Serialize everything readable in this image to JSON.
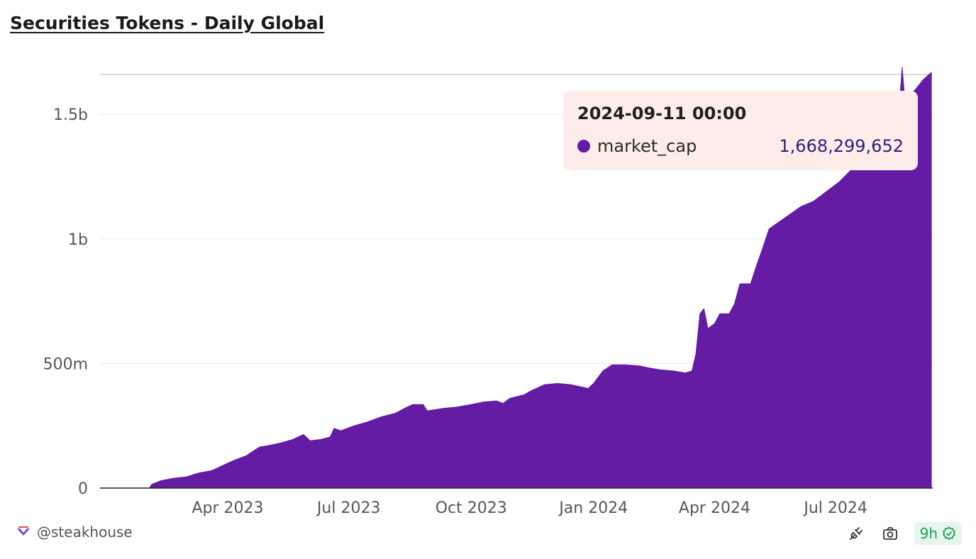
{
  "header": {
    "title": "Securities Tokens - Daily Global"
  },
  "tooltip": {
    "date": "2024-09-11 00:00",
    "series_name": "market_cap",
    "value": "1,668,299,652"
  },
  "footer": {
    "author": "@steakhouse",
    "age": "9h"
  },
  "colors": {
    "series": "#631ca3",
    "grid": "#e8e8e8",
    "axis": "#222222",
    "badge": "#1e9e55"
  },
  "icons": [
    "steakhouse-logo-icon",
    "plug-icon",
    "camera-icon",
    "check-circle-icon"
  ],
  "chart_data": {
    "type": "area",
    "title": "Securities Tokens - Daily Global",
    "xlabel": "",
    "ylabel": "",
    "series": [
      {
        "name": "market_cap"
      }
    ],
    "y_ticks": [
      {
        "value": 0,
        "label": "0"
      },
      {
        "value": 500000000,
        "label": "500m"
      },
      {
        "value": 1000000000,
        "label": "1b"
      },
      {
        "value": 1500000000,
        "label": "1.5b"
      }
    ],
    "x_ticks": [
      {
        "date": "2023-04-01",
        "label": "Apr 2023"
      },
      {
        "date": "2023-07-01",
        "label": "Jul 2023"
      },
      {
        "date": "2023-10-01",
        "label": "Oct 2023"
      },
      {
        "date": "2024-01-01",
        "label": "Jan 2024"
      },
      {
        "date": "2024-04-01",
        "label": "Apr 2024"
      },
      {
        "date": "2024-07-01",
        "label": "Jul 2024"
      }
    ],
    "xlim": [
      "2022-12-26",
      "2024-09-12"
    ],
    "ylim": [
      0,
      1660000000
    ],
    "grid": true,
    "points": [
      [
        "2022-12-26",
        0
      ],
      [
        "2023-02-01",
        0
      ],
      [
        "2023-02-03",
        15000000
      ],
      [
        "2023-02-10",
        30000000
      ],
      [
        "2023-02-20",
        40000000
      ],
      [
        "2023-03-01",
        45000000
      ],
      [
        "2023-03-10",
        60000000
      ],
      [
        "2023-03-20",
        70000000
      ],
      [
        "2023-03-28",
        90000000
      ],
      [
        "2023-04-01",
        100000000
      ],
      [
        "2023-04-05",
        110000000
      ],
      [
        "2023-04-15",
        130000000
      ],
      [
        "2023-04-25",
        165000000
      ],
      [
        "2023-05-01",
        170000000
      ],
      [
        "2023-05-10",
        180000000
      ],
      [
        "2023-05-20",
        195000000
      ],
      [
        "2023-05-28",
        215000000
      ],
      [
        "2023-06-02",
        190000000
      ],
      [
        "2023-06-10",
        195000000
      ],
      [
        "2023-06-17",
        205000000
      ],
      [
        "2023-06-20",
        240000000
      ],
      [
        "2023-06-25",
        230000000
      ],
      [
        "2023-07-05",
        250000000
      ],
      [
        "2023-07-15",
        265000000
      ],
      [
        "2023-07-25",
        285000000
      ],
      [
        "2023-08-05",
        300000000
      ],
      [
        "2023-08-12",
        320000000
      ],
      [
        "2023-08-18",
        335000000
      ],
      [
        "2023-08-26",
        335000000
      ],
      [
        "2023-08-29",
        310000000
      ],
      [
        "2023-09-10",
        320000000
      ],
      [
        "2023-09-20",
        325000000
      ],
      [
        "2023-10-01",
        335000000
      ],
      [
        "2023-10-10",
        345000000
      ],
      [
        "2023-10-20",
        350000000
      ],
      [
        "2023-10-25",
        340000000
      ],
      [
        "2023-10-30",
        360000000
      ],
      [
        "2023-11-10",
        375000000
      ],
      [
        "2023-11-15",
        390000000
      ],
      [
        "2023-11-25",
        415000000
      ],
      [
        "2023-12-05",
        420000000
      ],
      [
        "2023-12-15",
        415000000
      ],
      [
        "2023-12-28",
        400000000
      ],
      [
        "2024-01-01",
        420000000
      ],
      [
        "2024-01-08",
        470000000
      ],
      [
        "2024-01-15",
        495000000
      ],
      [
        "2024-01-25",
        495000000
      ],
      [
        "2024-02-05",
        490000000
      ],
      [
        "2024-02-12",
        482000000
      ],
      [
        "2024-02-20",
        475000000
      ],
      [
        "2024-03-01",
        470000000
      ],
      [
        "2024-03-10",
        462000000
      ],
      [
        "2024-03-15",
        470000000
      ],
      [
        "2024-03-18",
        540000000
      ],
      [
        "2024-03-21",
        700000000
      ],
      [
        "2024-03-24",
        720000000
      ],
      [
        "2024-03-27",
        640000000
      ],
      [
        "2024-04-01",
        660000000
      ],
      [
        "2024-04-05",
        700000000
      ],
      [
        "2024-04-12",
        700000000
      ],
      [
        "2024-04-16",
        740000000
      ],
      [
        "2024-04-20",
        820000000
      ],
      [
        "2024-04-28",
        820000000
      ],
      [
        "2024-05-03",
        900000000
      ],
      [
        "2024-05-07",
        960000000
      ],
      [
        "2024-05-12",
        1040000000
      ],
      [
        "2024-05-20",
        1070000000
      ],
      [
        "2024-05-28",
        1100000000
      ],
      [
        "2024-06-05",
        1130000000
      ],
      [
        "2024-06-14",
        1150000000
      ],
      [
        "2024-06-24",
        1190000000
      ],
      [
        "2024-07-04",
        1230000000
      ],
      [
        "2024-07-15",
        1290000000
      ],
      [
        "2024-07-28",
        1420000000
      ],
      [
        "2024-08-10",
        1520000000
      ],
      [
        "2024-08-18",
        1540000000
      ],
      [
        "2024-08-20",
        1690000000
      ],
      [
        "2024-08-22",
        1560000000
      ],
      [
        "2024-08-30",
        1600000000
      ],
      [
        "2024-09-05",
        1640000000
      ],
      [
        "2024-09-11",
        1668299652
      ]
    ]
  }
}
